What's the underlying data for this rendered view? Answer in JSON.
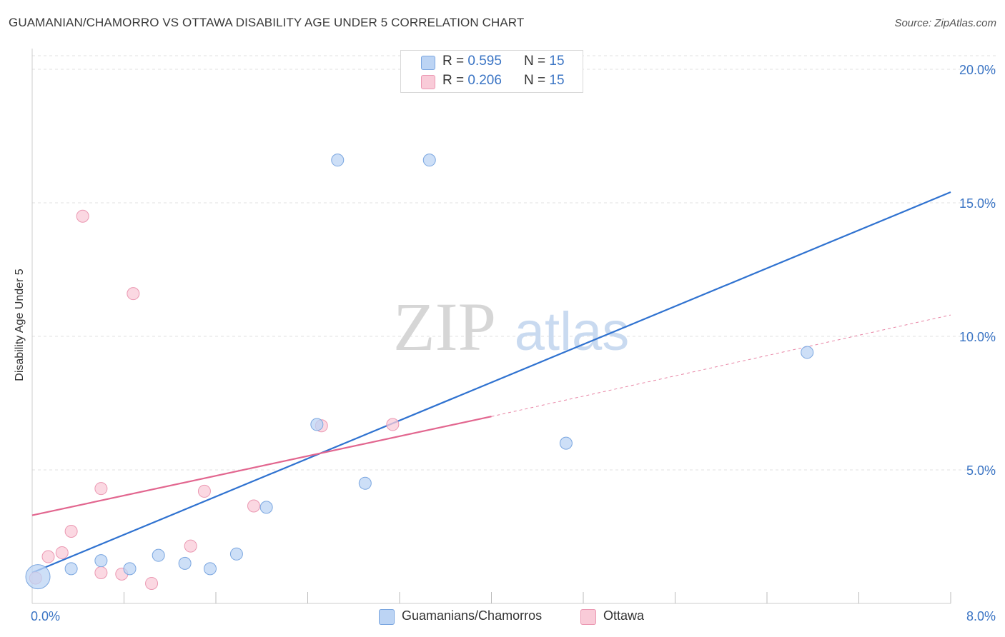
{
  "header": {
    "title": "GUAMANIAN/CHAMORRO VS OTTAWA DISABILITY AGE UNDER 5 CORRELATION CHART",
    "source": "Source: ZipAtlas.com"
  },
  "legend_top": {
    "rows": [
      {
        "r_label": "R = ",
        "r_value": "0.595",
        "n_label": "N = ",
        "n_value": "15"
      },
      {
        "r_label": "R = ",
        "r_value": "0.206",
        "n_label": "N = ",
        "n_value": "15"
      }
    ]
  },
  "legend_bottom": {
    "items": [
      {
        "label": "Guamanians/Chamorros"
      },
      {
        "label": "Ottawa"
      }
    ]
  },
  "watermark": {
    "zip": "ZIP",
    "atlas": "atlas"
  },
  "colors": {
    "blue_fill": "#bcd4f4",
    "blue_stroke": "#7aa6e0",
    "blue_line": "#2f72d0",
    "pink_fill": "#f9cbd8",
    "pink_stroke": "#eb98b2",
    "pink_line": "#e2668f",
    "tick_text": "#3a74c4",
    "grid": "#e2e2e2"
  },
  "chart_data": {
    "type": "scatter",
    "title": "GUAMANIAN/CHAMORRO VS OTTAWA DISABILITY AGE UNDER 5 CORRELATION CHART",
    "xlabel": "",
    "ylabel": "Disability Age Under 5",
    "xlim": [
      0,
      8
    ],
    "ylim": [
      0,
      20
    ],
    "x_tick_labels": [
      {
        "value": 0,
        "label": "0.0%"
      },
      {
        "value": 8,
        "label": "8.0%"
      }
    ],
    "y_tick_labels": [
      {
        "value": 5,
        "label": "5.0%"
      },
      {
        "value": 10,
        "label": "10.0%"
      },
      {
        "value": 15,
        "label": "15.0%"
      },
      {
        "value": 20,
        "label": "20.0%"
      }
    ],
    "series": [
      {
        "name": "Guamanians/Chamorros",
        "r": 0.595,
        "n": 15,
        "points": [
          {
            "x": 0.05,
            "y": 1.0,
            "big": true
          },
          {
            "x": 0.34,
            "y": 1.3
          },
          {
            "x": 0.6,
            "y": 1.6
          },
          {
            "x": 0.85,
            "y": 1.3
          },
          {
            "x": 1.1,
            "y": 1.8
          },
          {
            "x": 1.33,
            "y": 1.5
          },
          {
            "x": 1.55,
            "y": 1.3
          },
          {
            "x": 1.78,
            "y": 1.85
          },
          {
            "x": 2.04,
            "y": 3.6
          },
          {
            "x": 2.48,
            "y": 6.7
          },
          {
            "x": 2.66,
            "y": 16.6
          },
          {
            "x": 2.9,
            "y": 4.5
          },
          {
            "x": 3.46,
            "y": 16.6
          },
          {
            "x": 4.65,
            "y": 6.0
          },
          {
            "x": 6.75,
            "y": 9.4
          }
        ],
        "trend": {
          "x0": 0.0,
          "y0": 1.15,
          "x1": 8.0,
          "y1": 15.4
        }
      },
      {
        "name": "Ottawa",
        "r": 0.206,
        "n": 15,
        "points": [
          {
            "x": 0.03,
            "y": 0.95
          },
          {
            "x": 0.14,
            "y": 1.75
          },
          {
            "x": 0.26,
            "y": 1.9
          },
          {
            "x": 0.34,
            "y": 2.7
          },
          {
            "x": 0.44,
            "y": 14.5
          },
          {
            "x": 0.6,
            "y": 4.3
          },
          {
            "x": 0.6,
            "y": 1.15
          },
          {
            "x": 0.78,
            "y": 1.1
          },
          {
            "x": 0.88,
            "y": 11.6
          },
          {
            "x": 1.04,
            "y": 0.75
          },
          {
            "x": 1.38,
            "y": 2.15
          },
          {
            "x": 1.5,
            "y": 4.2
          },
          {
            "x": 1.93,
            "y": 3.65
          },
          {
            "x": 2.52,
            "y": 6.65
          },
          {
            "x": 3.14,
            "y": 6.7
          }
        ],
        "trend": {
          "x0": 0.0,
          "y0": 3.3,
          "x1": 4.0,
          "y1": 7.0
        },
        "trend_dashed": {
          "x0": 4.0,
          "y0": 7.0,
          "x1": 8.0,
          "y1": 10.8
        }
      }
    ]
  }
}
